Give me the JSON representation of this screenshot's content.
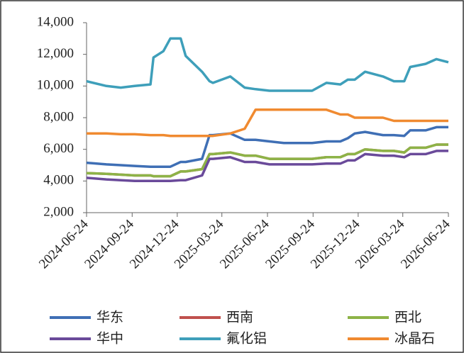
{
  "chart_data": {
    "type": "line",
    "x": [
      "2024-06-24",
      "2024-08-03",
      "2024-09-01",
      "2024-09-29",
      "2024-10-31",
      "2024-11-06",
      "2024-11-26",
      "2024-12-10",
      "2024-12-31",
      "2025-01-10",
      "2025-02-12",
      "2025-02-27",
      "2025-03-06",
      "2025-04-10",
      "2025-05-09",
      "2025-05-31",
      "2025-06-28",
      "2025-07-27",
      "2025-09-22",
      "2025-10-21",
      "2025-11-18",
      "2025-12-03",
      "2025-12-17",
      "2026-01-07",
      "2026-02-12",
      "2026-03-06",
      "2026-03-27",
      "2026-04-08",
      "2026-05-09",
      "2026-05-31",
      "2026-06-24"
    ],
    "series": [
      {
        "name": "华东",
        "color": "#3f6fb5",
        "values": [
          5150,
          5050,
          5000,
          4950,
          4900,
          4900,
          4900,
          4900,
          5200,
          5200,
          5400,
          6900,
          6900,
          7000,
          6600,
          6600,
          6500,
          6400,
          6400,
          6500,
          6500,
          6700,
          7000,
          7100,
          6900,
          6900,
          6850,
          7200,
          7200,
          7400,
          7400
        ]
      },
      {
        "name": "西南",
        "color": "#c0504d",
        "values": [
          4500,
          4450,
          4400,
          4350,
          4350,
          4300,
          4300,
          4300,
          4600,
          4600,
          4750,
          5700,
          5700,
          5800,
          5600,
          5600,
          5400,
          5400,
          5400,
          5500,
          5500,
          5700,
          5700,
          6000,
          5900,
          5900,
          5800,
          6100,
          6100,
          6300,
          6300
        ]
      },
      {
        "name": "西北",
        "color": "#8db347",
        "values": [
          4500,
          4450,
          4400,
          4350,
          4350,
          4300,
          4300,
          4300,
          4600,
          4600,
          4750,
          5700,
          5700,
          5800,
          5600,
          5600,
          5400,
          5400,
          5400,
          5500,
          5500,
          5700,
          5700,
          6000,
          5900,
          5900,
          5800,
          6100,
          6100,
          6300,
          6300
        ]
      },
      {
        "name": "华中",
        "color": "#6a4a9a",
        "values": [
          4200,
          4100,
          4050,
          4000,
          4000,
          4000,
          4000,
          4000,
          4050,
          4050,
          4350,
          5400,
          5400,
          5500,
          5200,
          5200,
          5050,
          5050,
          5050,
          5100,
          5100,
          5300,
          5300,
          5700,
          5600,
          5600,
          5500,
          5700,
          5700,
          5900,
          5900
        ]
      },
      {
        "name": "氟化铝",
        "color": "#3e9fba",
        "values": [
          10300,
          10000,
          9900,
          10000,
          10100,
          11800,
          12200,
          13000,
          13000,
          11900,
          10900,
          10300,
          10200,
          10600,
          9900,
          9800,
          9700,
          9700,
          9700,
          10200,
          10100,
          10400,
          10400,
          10900,
          10600,
          10300,
          10300,
          11200,
          11400,
          11700,
          11500
        ]
      },
      {
        "name": "冰晶石",
        "color": "#f08a30",
        "values": [
          7000,
          7000,
          6950,
          6950,
          6900,
          6900,
          6900,
          6850,
          6850,
          6850,
          6850,
          6850,
          6850,
          7000,
          7300,
          8500,
          8500,
          8500,
          8500,
          8500,
          8200,
          8200,
          8000,
          8000,
          8000,
          7800,
          7800,
          7800,
          7800,
          7800,
          7800
        ]
      }
    ],
    "xticks": [
      "2024-06-24",
      "2024-09-24",
      "2024-12-24",
      "2025-03-24",
      "2025-06-24",
      "2025-09-24",
      "2025-12-24",
      "2026-03-24",
      "2026-06-24"
    ],
    "xlim": [
      "2024-06-24",
      "2026-06-24"
    ],
    "ylim": [
      2000,
      14000
    ],
    "yticks": [
      {
        "value": 2000,
        "label": "2,000"
      },
      {
        "value": 4000,
        "label": "4,000"
      },
      {
        "value": 6000,
        "label": "6,000"
      },
      {
        "value": 8000,
        "label": "8,000"
      },
      {
        "value": 10000,
        "label": "10,000"
      },
      {
        "value": 12000,
        "label": "12,000"
      },
      {
        "value": 14000,
        "label": "14,000"
      }
    ],
    "grid": false,
    "legend": "bottom"
  }
}
